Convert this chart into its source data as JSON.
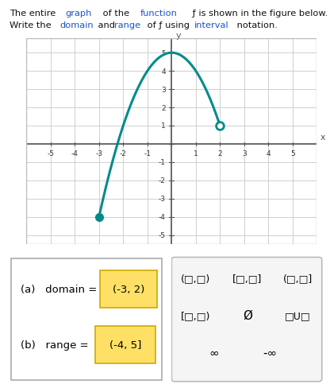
{
  "curve_color": "#008B8B",
  "grid_color": "#d0d0d0",
  "axis_color": "#555555",
  "bg_color": "#ffffff",
  "plot_bg": "#ffffff",
  "xlim": [
    -6,
    6
  ],
  "ylim": [
    -5.5,
    5.8
  ],
  "xticks": [
    -5,
    -4,
    -3,
    -2,
    -1,
    0,
    1,
    2,
    3,
    4,
    5
  ],
  "yticks": [
    -5,
    -4,
    -3,
    -2,
    -1,
    0,
    1,
    2,
    3,
    4,
    5
  ],
  "domain_text": "(-3, 2)",
  "range_text": "(-4, 5]",
  "highlight_color": "#FFE066",
  "highlight_border": "#ccaa00",
  "link_color": "#1a55cc",
  "text_color": "#111111"
}
